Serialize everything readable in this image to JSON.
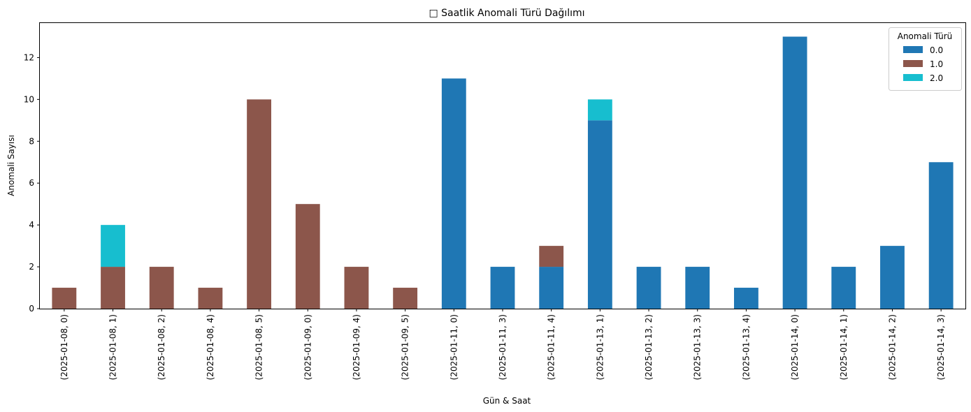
{
  "chart_data": {
    "type": "bar",
    "stacked": true,
    "title": "□ Saatlik Anomali Türü Dağılımı",
    "xlabel": "Gün & Saat",
    "ylabel": "Anomali Sayısı",
    "ylim": [
      0,
      13.65
    ],
    "yticks": [
      0,
      2,
      4,
      6,
      8,
      10,
      12
    ],
    "grid": false,
    "legend": {
      "title": "Anomali Türü",
      "placement": "top-right"
    },
    "categories": [
      "(2025-01-08, 0)",
      "(2025-01-08, 1)",
      "(2025-01-08, 2)",
      "(2025-01-08, 4)",
      "(2025-01-08, 5)",
      "(2025-01-09, 0)",
      "(2025-01-09, 4)",
      "(2025-01-09, 5)",
      "(2025-01-11, 0)",
      "(2025-01-11, 3)",
      "(2025-01-11, 4)",
      "(2025-01-13, 1)",
      "(2025-01-13, 2)",
      "(2025-01-13, 3)",
      "(2025-01-13, 4)",
      "(2025-01-14, 0)",
      "(2025-01-14, 1)",
      "(2025-01-14, 2)",
      "(2025-01-14, 3)"
    ],
    "series": [
      {
        "name": "0.0",
        "color": "#1f77b4",
        "values": [
          0,
          0,
          0,
          0,
          0,
          0,
          0,
          0,
          11,
          2,
          2,
          9,
          2,
          2,
          1,
          13,
          2,
          3,
          7
        ]
      },
      {
        "name": "1.0",
        "color": "#8c564b",
        "values": [
          1,
          2,
          2,
          1,
          10,
          5,
          2,
          1,
          0,
          0,
          1,
          0,
          0,
          0,
          0,
          0,
          0,
          0,
          0
        ]
      },
      {
        "name": "2.0",
        "color": "#17becf",
        "values": [
          0,
          2,
          0,
          0,
          0,
          0,
          0,
          0,
          0,
          0,
          0,
          1,
          0,
          0,
          0,
          0,
          0,
          0,
          0
        ]
      }
    ]
  }
}
